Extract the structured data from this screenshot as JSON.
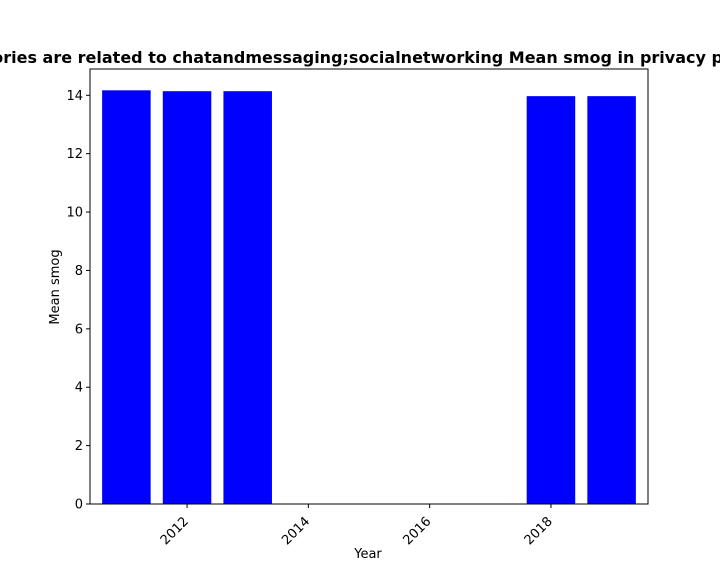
{
  "chart_data": {
    "type": "bar",
    "title": "Categories are related to chatandmessaging;socialnetworking Mean smog in privacy policies",
    "xlabel": "Year",
    "ylabel": "Mean smog",
    "x": [
      2011,
      2012,
      2013,
      2018,
      2019
    ],
    "values": [
      14.17,
      14.14,
      14.14,
      13.97,
      13.97
    ],
    "xlim": [
      2010.4,
      2019.6
    ],
    "ylim": [
      0,
      14.9
    ],
    "xticks": [
      2012,
      2014,
      2016,
      2018
    ],
    "xtick_labels": [
      "2012",
      "2014",
      "2016",
      "2018"
    ],
    "yticks": [
      0,
      2,
      4,
      6,
      8,
      10,
      12,
      14
    ],
    "ytick_labels": [
      "0",
      "2",
      "4",
      "6",
      "8",
      "10",
      "12",
      "14"
    ],
    "bar_color": "#0000ff",
    "grid": false,
    "legend": "none"
  }
}
